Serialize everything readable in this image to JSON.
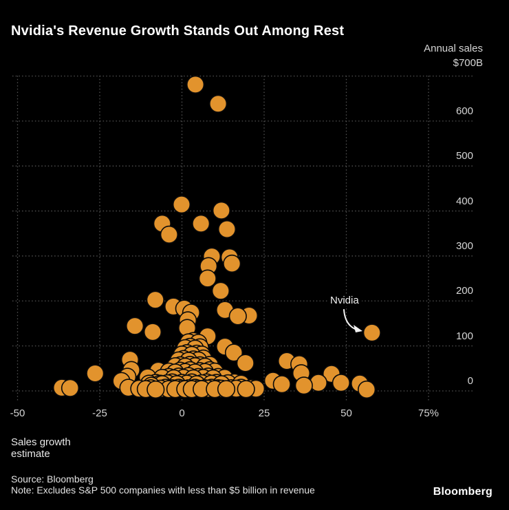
{
  "header": {
    "title": "Nvidia's Revenue Growth Stands Out Among Rest"
  },
  "chart_data": {
    "type": "scatter",
    "title": "Nvidia's Revenue Growth Stands Out Among Rest",
    "ylabel_line1": "Annual sales",
    "ylabel_line2": "$700B",
    "xlabel_line1": "Sales growth",
    "xlabel_line2": "estimate",
    "xlim": [
      -50,
      75
    ],
    "ylim": [
      0,
      700
    ],
    "grid": "dotted",
    "legend_position": "none",
    "point_color": "#E2932D",
    "point_outline": "#0a0a0a",
    "grid_color": "#545454",
    "background_color": "#000000",
    "x_ticks": [
      {
        "value": -50,
        "label": "-50"
      },
      {
        "value": -25,
        "label": "-25"
      },
      {
        "value": 0,
        "label": "0"
      },
      {
        "value": 25,
        "label": "25"
      },
      {
        "value": 50,
        "label": "50"
      },
      {
        "value": 75,
        "label": "75%"
      }
    ],
    "y_ticks": [
      {
        "value": 0,
        "label": "0"
      },
      {
        "value": 100,
        "label": "100"
      },
      {
        "value": 200,
        "label": "200"
      },
      {
        "value": 300,
        "label": "300"
      },
      {
        "value": 400,
        "label": "400"
      },
      {
        "value": 500,
        "label": "500"
      },
      {
        "value": 600,
        "label": "600"
      }
    ],
    "y_grid_values": [
      0,
      100,
      200,
      300,
      400,
      500,
      600,
      700
    ],
    "annotation": {
      "label": "Nvidia",
      "point": {
        "sales_growth_estimate_pct": 57.8,
        "annual_sales_b": 129.5
      }
    },
    "series": [
      {
        "name": "S&P 500 companies (growth %, annual sales $B)",
        "points": [
          [
            -36.5,
            7
          ],
          [
            -34,
            6.5
          ],
          [
            -26.4,
            39
          ],
          [
            -18.4,
            22
          ],
          [
            -16.6,
            31.5
          ],
          [
            -16.3,
            7
          ],
          [
            -15.8,
            69.5
          ],
          [
            -15.4,
            46.5
          ],
          [
            -14.3,
            144.5
          ],
          [
            -10.4,
            30
          ],
          [
            -9.3,
            11.5
          ],
          [
            -8.9,
            131
          ],
          [
            -8.1,
            202.5
          ],
          [
            -7.2,
            45
          ],
          [
            -6.6,
            16
          ],
          [
            -6,
            372
          ],
          [
            -3.9,
            347.5
          ],
          [
            -2.6,
            187.5
          ],
          [
            -0.1,
            414.5
          ],
          [
            0.7,
            183
          ],
          [
            1.6,
            140
          ],
          [
            1.8,
            157
          ],
          [
            2.8,
            174
          ],
          [
            4.1,
            681
          ],
          [
            5.8,
            372
          ],
          [
            7.8,
            250
          ],
          [
            7.8,
            121.5
          ],
          [
            8.1,
            277.5
          ],
          [
            9.1,
            299
          ],
          [
            11,
            638.5
          ],
          [
            11.8,
            222.5
          ],
          [
            12,
            401
          ],
          [
            13.1,
            180
          ],
          [
            13.1,
            98.5
          ],
          [
            13.7,
            359.5
          ],
          [
            14.5,
            297
          ],
          [
            15.2,
            283
          ],
          [
            15.8,
            85
          ],
          [
            17,
            166
          ],
          [
            19.3,
            62
          ],
          [
            20.4,
            167.5
          ],
          [
            27.7,
            22.5
          ],
          [
            30.4,
            15
          ],
          [
            31.9,
            66.5
          ],
          [
            35.7,
            59.5
          ],
          [
            36.3,
            39.5
          ],
          [
            37.1,
            12
          ],
          [
            41.5,
            18
          ],
          [
            45.5,
            38
          ],
          [
            48.4,
            18
          ],
          [
            54.1,
            16.5
          ],
          [
            56.2,
            3
          ],
          [
            -13,
            5
          ],
          [
            -11,
            4
          ],
          [
            -9.5,
            6
          ],
          [
            -8,
            3
          ],
          [
            -6.5,
            5
          ],
          [
            -5,
            7
          ],
          [
            -4,
            4
          ],
          [
            -3,
            6
          ],
          [
            -2,
            4
          ],
          [
            -1,
            7
          ],
          [
            0,
            5
          ],
          [
            1,
            4
          ],
          [
            2,
            6
          ],
          [
            3,
            4
          ],
          [
            4,
            7
          ],
          [
            5,
            5
          ],
          [
            6,
            4
          ],
          [
            7,
            6
          ],
          [
            8,
            5
          ],
          [
            9,
            7
          ],
          [
            10,
            4
          ],
          [
            11,
            6
          ],
          [
            12,
            5
          ],
          [
            13.5,
            4
          ],
          [
            15,
            6
          ],
          [
            16.5,
            5
          ],
          [
            18,
            7
          ],
          [
            19.5,
            4
          ],
          [
            21,
            6
          ],
          [
            22.5,
            5
          ],
          [
            -10,
            16
          ],
          [
            -8,
            18
          ],
          [
            -6,
            15
          ],
          [
            -4.5,
            17
          ],
          [
            -3,
            19
          ],
          [
            -1.5,
            15
          ],
          [
            0,
            18
          ],
          [
            1.5,
            16
          ],
          [
            3,
            19
          ],
          [
            4.5,
            15
          ],
          [
            6,
            17
          ],
          [
            7.5,
            19
          ],
          [
            9,
            16
          ],
          [
            10.5,
            18
          ],
          [
            12,
            15
          ],
          [
            14,
            17
          ],
          [
            16,
            19
          ],
          [
            18,
            16
          ],
          [
            -6,
            29
          ],
          [
            -4,
            31
          ],
          [
            -2.5,
            28
          ],
          [
            -1,
            32
          ],
          [
            0.5,
            29
          ],
          [
            2,
            33
          ],
          [
            3.5,
            28
          ],
          [
            5,
            31
          ],
          [
            6.5,
            29
          ],
          [
            8,
            32
          ],
          [
            9.5,
            28
          ],
          [
            11,
            31
          ],
          [
            13,
            29
          ],
          [
            -4,
            43
          ],
          [
            -2,
            41
          ],
          [
            -0.5,
            45
          ],
          [
            1,
            42
          ],
          [
            2.5,
            46
          ],
          [
            4,
            41
          ],
          [
            5.5,
            44
          ],
          [
            7,
            42
          ],
          [
            8.5,
            46
          ],
          [
            10,
            43
          ],
          [
            -2,
            55
          ],
          [
            -0.5,
            57
          ],
          [
            1,
            54
          ],
          [
            2.5,
            58
          ],
          [
            4,
            55
          ],
          [
            5.5,
            57
          ],
          [
            7,
            54
          ],
          [
            8.5,
            58
          ],
          [
            -1,
            68
          ],
          [
            0.5,
            71
          ],
          [
            2,
            67
          ],
          [
            3.5,
            70
          ],
          [
            5,
            68
          ],
          [
            6.5,
            72
          ],
          [
            0,
            81
          ],
          [
            1.5,
            84
          ],
          [
            3,
            80
          ],
          [
            4.5,
            83
          ],
          [
            6,
            81
          ],
          [
            1,
            95
          ],
          [
            2.5,
            98
          ],
          [
            4,
            94
          ],
          [
            5.5,
            97
          ],
          [
            2,
            108
          ],
          [
            3.5,
            111
          ],
          [
            5,
            107
          ]
        ]
      }
    ]
  },
  "footer": {
    "source": "Source: Bloomberg",
    "note": "Note: Excludes S&P 500 companies with less than $5 billion in revenue",
    "logo": "Bloomberg"
  }
}
